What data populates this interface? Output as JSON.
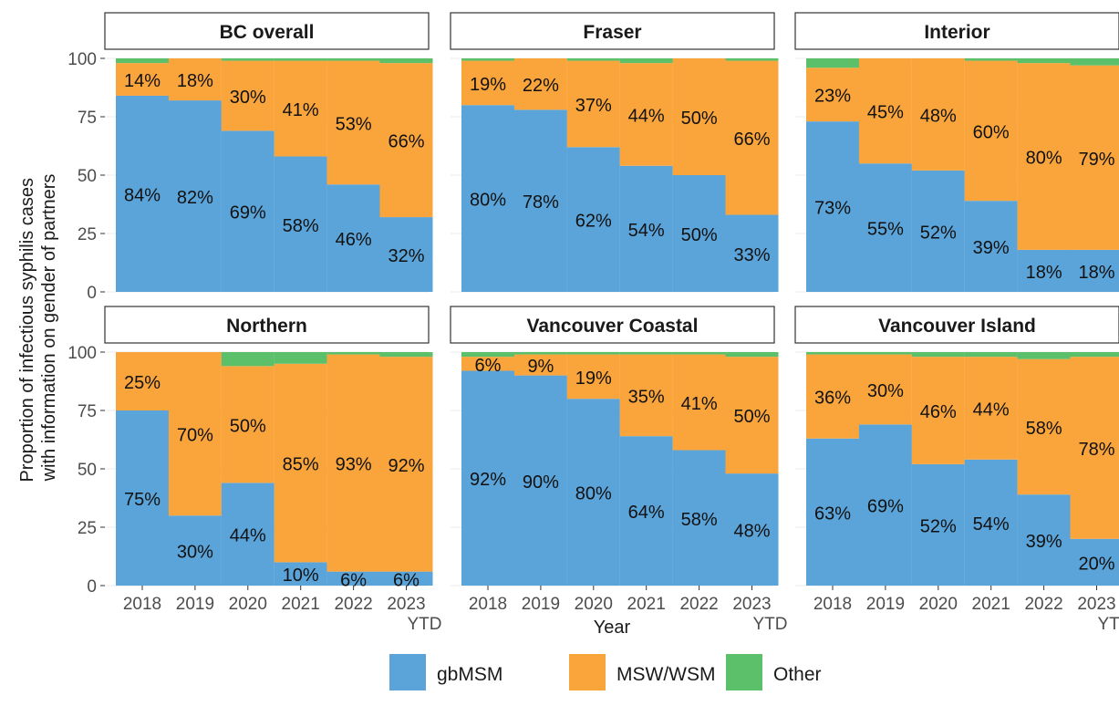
{
  "chart_data": {
    "type": "bar",
    "stacked": true,
    "xlabel": "Year",
    "ylabel": [
      "Proportion of infectious syphilis cases",
      "with information on gender of partners"
    ],
    "ylim": [
      0,
      100
    ],
    "yticks": [
      "0",
      "25",
      "50",
      "75",
      "100"
    ],
    "categories": [
      [
        "2018"
      ],
      [
        "2019"
      ],
      [
        "2020"
      ],
      [
        "2021"
      ],
      [
        "2022"
      ],
      [
        "2023",
        "YTD"
      ]
    ],
    "legend": {
      "placement": "bottom",
      "entries": [
        {
          "name": "gbMSM",
          "color": "#5ba4d9"
        },
        {
          "name": "MSW/WSM",
          "color": "#f9a53c"
        },
        {
          "name": "Other",
          "color": "#5cbf6a"
        }
      ]
    },
    "panels": [
      {
        "title": "BC overall",
        "gbMSM": [
          84,
          82,
          69,
          58,
          46,
          32
        ],
        "MSW_WSM": [
          14,
          18,
          30,
          41,
          53,
          66
        ],
        "Other": [
          2,
          0,
          1,
          1,
          1,
          2
        ],
        "gbMSM_labels": [
          "84%",
          "82%",
          "69%",
          "58%",
          "46%",
          "32%"
        ],
        "MSW_labels": [
          "14%",
          "18%",
          "30%",
          "41%",
          "53%",
          "66%"
        ]
      },
      {
        "title": "Fraser",
        "gbMSM": [
          80,
          78,
          62,
          54,
          50,
          33
        ],
        "MSW_WSM": [
          19,
          22,
          37,
          44,
          50,
          66
        ],
        "Other": [
          1,
          0,
          1,
          2,
          0,
          1
        ],
        "gbMSM_labels": [
          "80%",
          "78%",
          "62%",
          "54%",
          "50%",
          "33%"
        ],
        "MSW_labels": [
          "19%",
          "22%",
          "37%",
          "44%",
          "50%",
          "66%"
        ]
      },
      {
        "title": "Interior",
        "gbMSM": [
          73,
          55,
          52,
          39,
          18,
          18
        ],
        "MSW_WSM": [
          23,
          45,
          48,
          60,
          80,
          79
        ],
        "Other": [
          4,
          0,
          0,
          1,
          2,
          3
        ],
        "gbMSM_labels": [
          "73%",
          "55%",
          "52%",
          "39%",
          "18%",
          "18%"
        ],
        "MSW_labels": [
          "23%",
          "45%",
          "48%",
          "60%",
          "80%",
          "79%"
        ]
      },
      {
        "title": "Northern",
        "gbMSM": [
          75,
          30,
          44,
          10,
          6,
          6
        ],
        "MSW_WSM": [
          25,
          70,
          50,
          85,
          93,
          92
        ],
        "Other": [
          0,
          0,
          6,
          5,
          1,
          2
        ],
        "gbMSM_labels": [
          "75%",
          "30%",
          "44%",
          "10%",
          "6%",
          "6%"
        ],
        "MSW_labels": [
          "25%",
          "70%",
          "50%",
          "85%",
          "93%",
          "92%"
        ]
      },
      {
        "title": "Vancouver Coastal",
        "gbMSM": [
          92,
          90,
          80,
          64,
          58,
          48
        ],
        "MSW_WSM": [
          6,
          9,
          19,
          35,
          41,
          50
        ],
        "Other": [
          2,
          1,
          1,
          1,
          1,
          2
        ],
        "gbMSM_labels": [
          "92%",
          "90%",
          "80%",
          "64%",
          "58%",
          "48%"
        ],
        "MSW_labels": [
          "6%",
          "9%",
          "19%",
          "35%",
          "41%",
          "50%"
        ]
      },
      {
        "title": "Vancouver Island",
        "gbMSM": [
          63,
          69,
          52,
          54,
          39,
          20
        ],
        "MSW_WSM": [
          36,
          30,
          46,
          44,
          58,
          78
        ],
        "Other": [
          1,
          1,
          2,
          2,
          3,
          2
        ],
        "gbMSM_labels": [
          "63%",
          "69%",
          "52%",
          "54%",
          "39%",
          "20%"
        ],
        "MSW_labels": [
          "36%",
          "30%",
          "46%",
          "44%",
          "58%",
          "78%"
        ]
      }
    ]
  }
}
